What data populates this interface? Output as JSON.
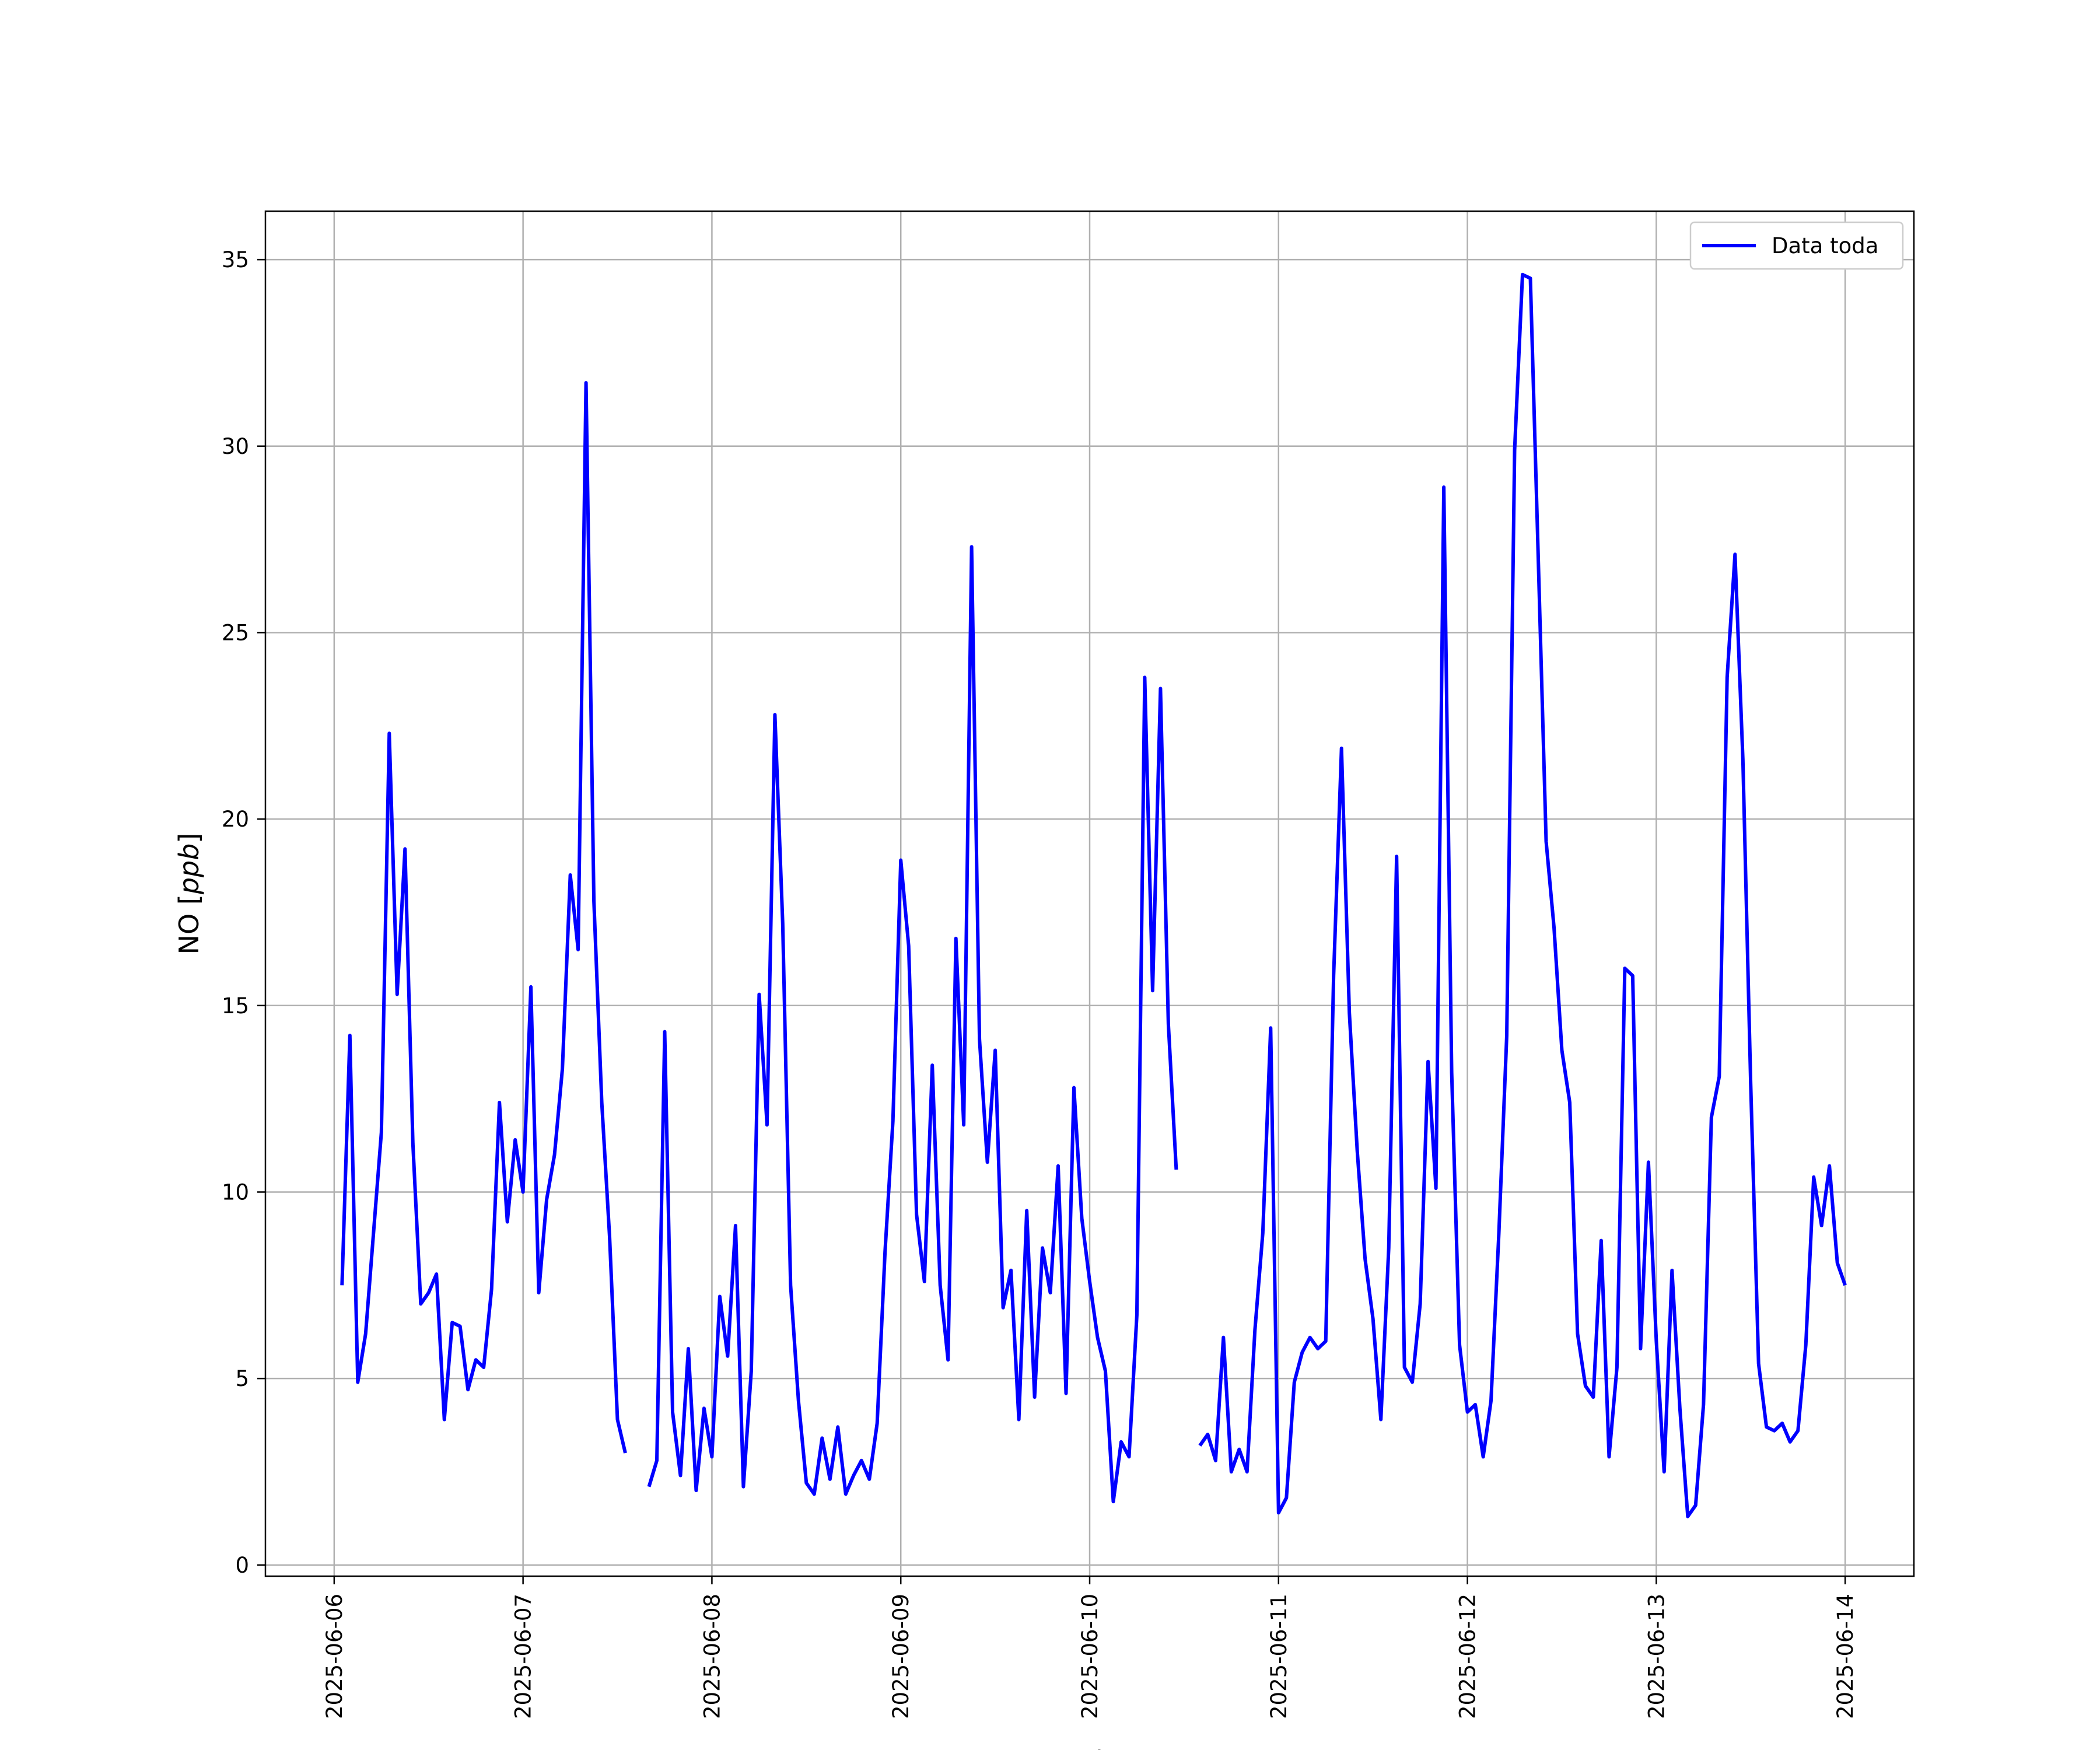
{
  "chart_data": {
    "type": "line",
    "xlabel": "Fecha",
    "ylabel_main": "NO",
    "ylabel_unit": "ppb",
    "grid": true,
    "legend_position": "top-right",
    "x_start": "2025-06-06T00:00",
    "x_end": "2025-06-14T00:00",
    "x_ticks": [
      "2025-06-06",
      "2025-06-07",
      "2025-06-08",
      "2025-06-09",
      "2025-06-10",
      "2025-06-11",
      "2025-06-12",
      "2025-06-13",
      "2025-06-14"
    ],
    "y_ticks": [
      "0",
      "5",
      "10",
      "15",
      "20",
      "25",
      "30",
      "35"
    ],
    "ylim": [
      -0.3,
      36.3
    ],
    "series": [
      {
        "name": "Data toda",
        "color": "#0000ff",
        "segments": [
          [
            [
              "2025-06-06T01:00",
              7.5
            ],
            [
              "2025-06-06T02:00",
              14.2
            ],
            [
              "2025-06-06T03:00",
              4.9
            ],
            [
              "2025-06-06T04:00",
              6.2
            ],
            [
              "2025-06-06T05:00",
              8.9
            ],
            [
              "2025-06-06T06:00",
              11.6
            ],
            [
              "2025-06-06T07:00",
              22.3
            ],
            [
              "2025-06-06T08:00",
              15.3
            ],
            [
              "2025-06-06T09:00",
              19.2
            ],
            [
              "2025-06-06T10:00",
              11.3
            ],
            [
              "2025-06-06T11:00",
              7.0
            ],
            [
              "2025-06-06T12:00",
              7.3
            ],
            [
              "2025-06-06T13:00",
              7.8
            ],
            [
              "2025-06-06T14:00",
              3.9
            ],
            [
              "2025-06-06T15:00",
              6.5
            ],
            [
              "2025-06-06T16:00",
              6.4
            ],
            [
              "2025-06-06T17:00",
              4.7
            ],
            [
              "2025-06-06T18:00",
              5.5
            ],
            [
              "2025-06-06T19:00",
              5.3
            ],
            [
              "2025-06-06T20:00",
              7.4
            ],
            [
              "2025-06-06T21:00",
              12.4
            ],
            [
              "2025-06-06T22:00",
              9.2
            ],
            [
              "2025-06-06T23:00",
              11.4
            ],
            [
              "2025-06-07T00:00",
              10.0
            ],
            [
              "2025-06-07T01:00",
              15.5
            ],
            [
              "2025-06-07T02:00",
              7.3
            ],
            [
              "2025-06-07T03:00",
              9.8
            ],
            [
              "2025-06-07T04:00",
              11.0
            ],
            [
              "2025-06-07T05:00",
              13.3
            ],
            [
              "2025-06-07T06:00",
              18.5
            ],
            [
              "2025-06-07T07:00",
              16.5
            ],
            [
              "2025-06-07T08:00",
              31.7
            ],
            [
              "2025-06-07T09:00",
              17.8
            ],
            [
              "2025-06-07T10:00",
              12.4
            ],
            [
              "2025-06-07T11:00",
              8.8
            ],
            [
              "2025-06-07T12:00",
              3.9
            ],
            [
              "2025-06-07T13:00",
              3.0
            ]
          ],
          [
            [
              "2025-06-07T16:00",
              2.1
            ],
            [
              "2025-06-07T17:00",
              2.8
            ],
            [
              "2025-06-07T18:00",
              14.3
            ],
            [
              "2025-06-07T19:00",
              4.1
            ],
            [
              "2025-06-07T20:00",
              2.4
            ],
            [
              "2025-06-07T21:00",
              5.8
            ],
            [
              "2025-06-07T22:00",
              2.0
            ],
            [
              "2025-06-07T23:00",
              4.2
            ],
            [
              "2025-06-08T00:00",
              2.9
            ],
            [
              "2025-06-08T01:00",
              7.2
            ],
            [
              "2025-06-08T02:00",
              5.6
            ],
            [
              "2025-06-08T03:00",
              9.1
            ],
            [
              "2025-06-08T04:00",
              2.1
            ],
            [
              "2025-06-08T05:00",
              5.2
            ],
            [
              "2025-06-08T06:00",
              15.3
            ],
            [
              "2025-06-08T07:00",
              11.8
            ],
            [
              "2025-06-08T08:00",
              22.8
            ],
            [
              "2025-06-08T09:00",
              17.2
            ],
            [
              "2025-06-08T10:00",
              7.5
            ],
            [
              "2025-06-08T11:00",
              4.4
            ],
            [
              "2025-06-08T12:00",
              2.2
            ],
            [
              "2025-06-08T13:00",
              1.9
            ],
            [
              "2025-06-08T14:00",
              3.4
            ],
            [
              "2025-06-08T15:00",
              2.3
            ],
            [
              "2025-06-08T16:00",
              3.7
            ],
            [
              "2025-06-08T17:00",
              1.9
            ],
            [
              "2025-06-08T18:00",
              2.4
            ],
            [
              "2025-06-08T19:00",
              2.8
            ],
            [
              "2025-06-08T20:00",
              2.3
            ],
            [
              "2025-06-08T21:00",
              3.8
            ],
            [
              "2025-06-08T22:00",
              8.4
            ],
            [
              "2025-06-08T23:00",
              11.9
            ],
            [
              "2025-06-09T00:00",
              18.9
            ],
            [
              "2025-06-09T01:00",
              16.6
            ],
            [
              "2025-06-09T02:00",
              9.4
            ],
            [
              "2025-06-09T03:00",
              7.6
            ],
            [
              "2025-06-09T04:00",
              13.4
            ],
            [
              "2025-06-09T05:00",
              7.5
            ],
            [
              "2025-06-09T06:00",
              5.5
            ],
            [
              "2025-06-09T07:00",
              16.8
            ],
            [
              "2025-06-09T08:00",
              11.8
            ],
            [
              "2025-06-09T09:00",
              27.3
            ],
            [
              "2025-06-09T10:00",
              14.1
            ],
            [
              "2025-06-09T11:00",
              10.8
            ],
            [
              "2025-06-09T12:00",
              13.8
            ],
            [
              "2025-06-09T13:00",
              6.9
            ],
            [
              "2025-06-09T14:00",
              7.9
            ],
            [
              "2025-06-09T15:00",
              3.9
            ],
            [
              "2025-06-09T16:00",
              9.5
            ],
            [
              "2025-06-09T17:00",
              4.5
            ],
            [
              "2025-06-09T18:00",
              8.5
            ],
            [
              "2025-06-09T19:00",
              7.3
            ],
            [
              "2025-06-09T20:00",
              10.7
            ],
            [
              "2025-06-09T21:00",
              4.6
            ],
            [
              "2025-06-09T22:00",
              12.8
            ],
            [
              "2025-06-09T23:00",
              9.3
            ],
            [
              "2025-06-10T00:00",
              7.6
            ],
            [
              "2025-06-10T01:00",
              6.1
            ],
            [
              "2025-06-10T02:00",
              5.2
            ],
            [
              "2025-06-10T03:00",
              1.7
            ],
            [
              "2025-06-10T04:00",
              3.3
            ],
            [
              "2025-06-10T05:00",
              2.9
            ],
            [
              "2025-06-10T06:00",
              6.7
            ],
            [
              "2025-06-10T07:00",
              23.8
            ],
            [
              "2025-06-10T08:00",
              15.4
            ],
            [
              "2025-06-10T09:00",
              23.5
            ],
            [
              "2025-06-10T10:00",
              14.5
            ],
            [
              "2025-06-10T11:00",
              10.6
            ]
          ],
          [
            [
              "2025-06-10T14:00",
              3.2
            ],
            [
              "2025-06-10T15:00",
              3.5
            ],
            [
              "2025-06-10T16:00",
              2.8
            ],
            [
              "2025-06-10T17:00",
              6.1
            ],
            [
              "2025-06-10T18:00",
              2.5
            ],
            [
              "2025-06-10T19:00",
              3.1
            ],
            [
              "2025-06-10T20:00",
              2.5
            ],
            [
              "2025-06-10T21:00",
              6.3
            ],
            [
              "2025-06-10T22:00",
              8.9
            ],
            [
              "2025-06-10T23:00",
              14.4
            ],
            [
              "2025-06-11T00:00",
              1.4
            ],
            [
              "2025-06-11T01:00",
              1.8
            ],
            [
              "2025-06-11T02:00",
              4.9
            ],
            [
              "2025-06-11T03:00",
              5.7
            ],
            [
              "2025-06-11T04:00",
              6.1
            ],
            [
              "2025-06-11T05:00",
              5.8
            ],
            [
              "2025-06-11T06:00",
              6.0
            ],
            [
              "2025-06-11T07:00",
              15.8
            ],
            [
              "2025-06-11T08:00",
              21.9
            ],
            [
              "2025-06-11T09:00",
              14.8
            ],
            [
              "2025-06-11T10:00",
              11.1
            ],
            [
              "2025-06-11T11:00",
              8.2
            ],
            [
              "2025-06-11T12:00",
              6.6
            ],
            [
              "2025-06-11T13:00",
              3.9
            ],
            [
              "2025-06-11T14:00",
              8.5
            ],
            [
              "2025-06-11T15:00",
              19.0
            ],
            [
              "2025-06-11T16:00",
              5.3
            ],
            [
              "2025-06-11T17:00",
              4.9
            ],
            [
              "2025-06-11T18:00",
              7.0
            ],
            [
              "2025-06-11T19:00",
              13.5
            ],
            [
              "2025-06-11T20:00",
              10.1
            ],
            [
              "2025-06-11T21:00",
              28.9
            ],
            [
              "2025-06-11T22:00",
              13.2
            ],
            [
              "2025-06-11T23:00",
              5.9
            ],
            [
              "2025-06-12T00:00",
              4.1
            ],
            [
              "2025-06-12T01:00",
              4.3
            ],
            [
              "2025-06-12T02:00",
              2.9
            ],
            [
              "2025-06-12T03:00",
              4.4
            ],
            [
              "2025-06-12T04:00",
              8.9
            ],
            [
              "2025-06-12T05:00",
              14.2
            ],
            [
              "2025-06-12T06:00",
              29.9
            ],
            [
              "2025-06-12T07:00",
              34.6
            ],
            [
              "2025-06-12T08:00",
              34.5
            ],
            [
              "2025-06-12T09:00",
              27.0
            ],
            [
              "2025-06-12T10:00",
              19.4
            ],
            [
              "2025-06-12T11:00",
              17.1
            ],
            [
              "2025-06-12T12:00",
              13.8
            ],
            [
              "2025-06-12T13:00",
              12.4
            ],
            [
              "2025-06-12T14:00",
              6.2
            ],
            [
              "2025-06-12T15:00",
              4.8
            ],
            [
              "2025-06-12T16:00",
              4.5
            ],
            [
              "2025-06-12T17:00",
              8.7
            ],
            [
              "2025-06-12T18:00",
              2.9
            ],
            [
              "2025-06-12T19:00",
              5.3
            ],
            [
              "2025-06-12T20:00",
              16.0
            ],
            [
              "2025-06-12T21:00",
              15.8
            ],
            [
              "2025-06-12T22:00",
              5.8
            ],
            [
              "2025-06-12T23:00",
              10.8
            ],
            [
              "2025-06-13T00:00",
              6.0
            ],
            [
              "2025-06-13T01:00",
              2.5
            ],
            [
              "2025-06-13T02:00",
              7.9
            ],
            [
              "2025-06-13T03:00",
              4.2
            ],
            [
              "2025-06-13T04:00",
              1.3
            ],
            [
              "2025-06-13T05:00",
              1.6
            ],
            [
              "2025-06-13T06:00",
              4.3
            ],
            [
              "2025-06-13T07:00",
              12.0
            ],
            [
              "2025-06-13T08:00",
              13.1
            ],
            [
              "2025-06-13T09:00",
              23.8
            ],
            [
              "2025-06-13T10:00",
              27.1
            ],
            [
              "2025-06-13T11:00",
              21.6
            ],
            [
              "2025-06-13T12:00",
              12.9
            ],
            [
              "2025-06-13T13:00",
              5.4
            ],
            [
              "2025-06-13T14:00",
              3.7
            ],
            [
              "2025-06-13T15:00",
              3.6
            ],
            [
              "2025-06-13T16:00",
              3.8
            ],
            [
              "2025-06-13T17:00",
              3.3
            ],
            [
              "2025-06-13T18:00",
              3.6
            ],
            [
              "2025-06-13T19:00",
              5.9
            ],
            [
              "2025-06-13T20:00",
              10.4
            ],
            [
              "2025-06-13T21:00",
              9.1
            ],
            [
              "2025-06-13T22:00",
              10.7
            ],
            [
              "2025-06-13T23:00",
              8.1
            ],
            [
              "2025-06-14T00:00",
              7.5
            ]
          ]
        ]
      }
    ]
  }
}
